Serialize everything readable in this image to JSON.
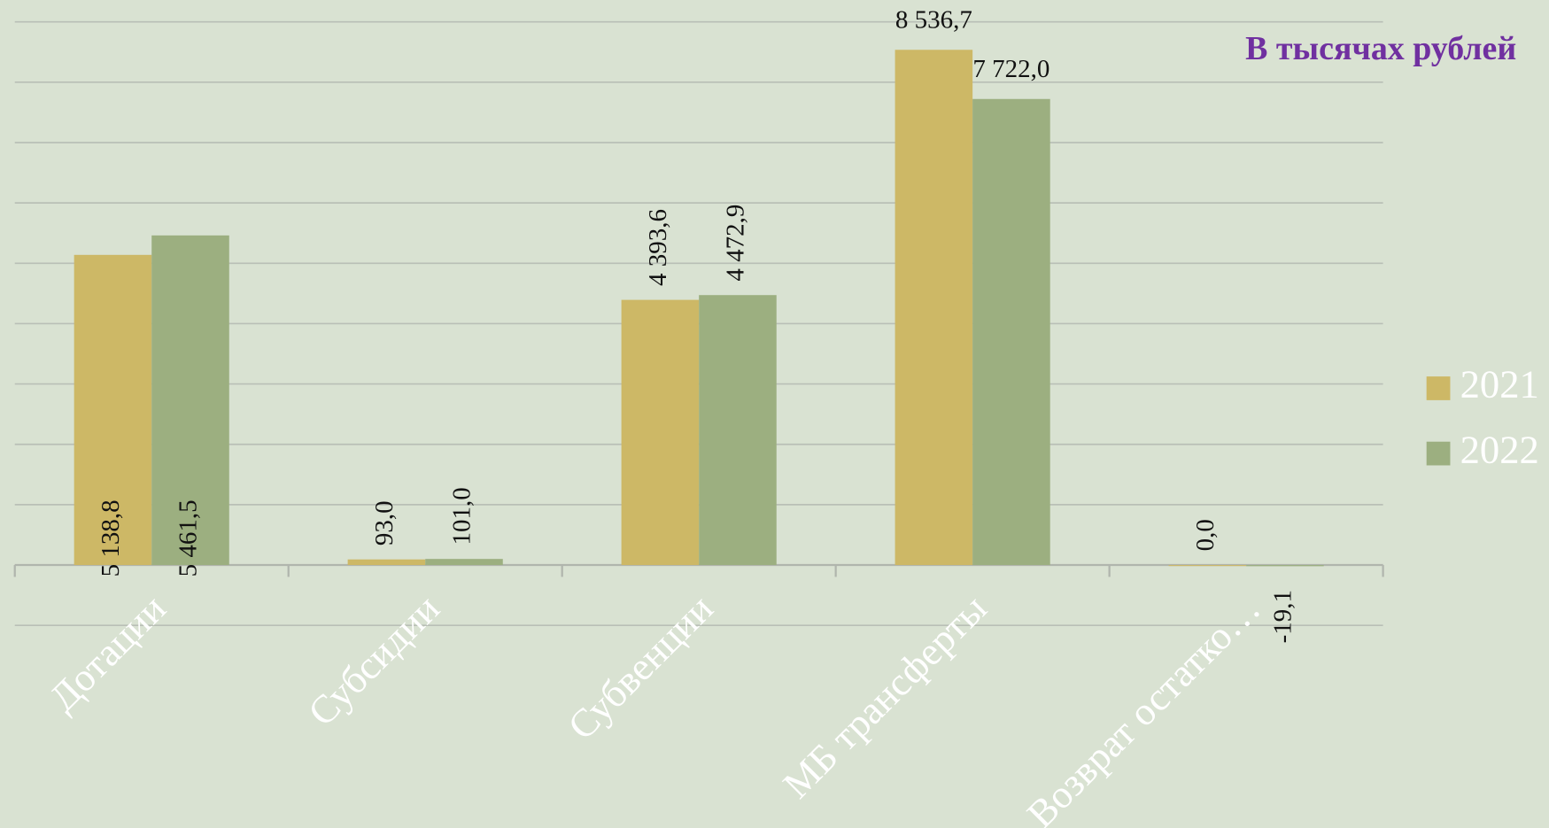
{
  "chart_data": {
    "type": "bar",
    "title": "В тысячах рублей",
    "categories": [
      "Дотации",
      "Субсидии",
      "Субвенции",
      "МБ трансферты",
      "Возврат остатко…"
    ],
    "series": [
      {
        "name": "2021",
        "color": "#cdb866",
        "values": [
          5138.8,
          93.0,
          4393.6,
          8536.7,
          0.0
        ],
        "value_labels": [
          "5 138,8",
          "93,0",
          "4 393,6",
          "8 536,7",
          "0,0"
        ]
      },
      {
        "name": "2022",
        "color": "#9caf80",
        "values": [
          5461.5,
          101.0,
          4472.9,
          7722.0,
          -19.1
        ],
        "value_labels": [
          "5 461,5",
          "101,0",
          "4 472,9",
          "7 722,0",
          "-19,1"
        ]
      }
    ],
    "ylim": [
      -1000,
      9000
    ],
    "yticks": [
      -1000,
      0,
      1000,
      2000,
      3000,
      4000,
      5000,
      6000,
      7000,
      8000,
      9000
    ],
    "grid": true,
    "legend": "right"
  }
}
